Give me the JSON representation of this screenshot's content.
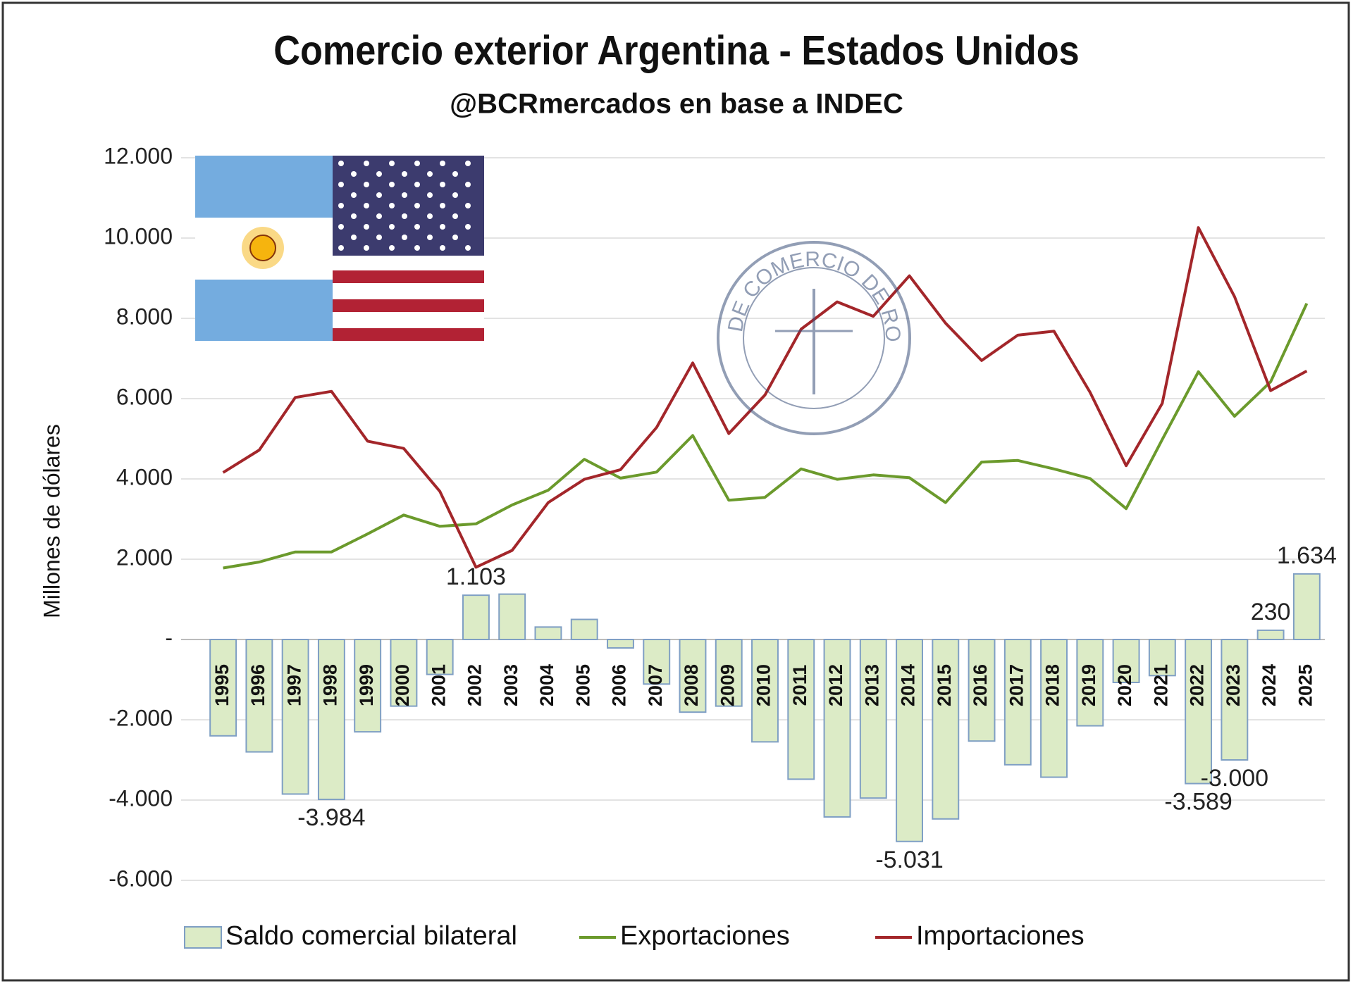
{
  "chart_data": {
    "type": "combo",
    "title": "Comercio exterior Argentina - Estados Unidos",
    "subtitle": "@BCRmercados en base a INDEC",
    "y_label": "Millones de dólares",
    "logo_text": "BOLSA DE COMERCIO DE ROSARIO",
    "categories": [
      "1995",
      "1996",
      "1997",
      "1998",
      "1999",
      "2000",
      "2001",
      "2002",
      "2003",
      "2004",
      "2005",
      "2006",
      "2007",
      "2008",
      "2009",
      "2010",
      "2011",
      "2012",
      "2013",
      "2014",
      "2015",
      "2016",
      "2017",
      "2018",
      "2019",
      "2020",
      "2021",
      "2022",
      "2023",
      "2024",
      "2025"
    ],
    "series": [
      {
        "name": "Saldo comercial bilateral",
        "type": "bar",
        "color": "#dcebc6",
        "stroke": "#7f9fc4",
        "values": [
          -2400,
          -2800,
          -3850,
          -3984,
          -2300,
          -1660,
          -870,
          1103,
          1130,
          310,
          500,
          -210,
          -1110,
          -1810,
          -1660,
          -2550,
          -3480,
          -4420,
          -3950,
          -5031,
          -4470,
          -2530,
          -3120,
          -3430,
          -2150,
          -1070,
          -900,
          -3589,
          -3000,
          230,
          1634
        ],
        "value_labels": [
          null,
          null,
          null,
          "-3.984",
          null,
          null,
          null,
          "1.103",
          null,
          null,
          null,
          null,
          null,
          null,
          null,
          null,
          null,
          null,
          null,
          "-5.031",
          null,
          null,
          null,
          null,
          null,
          null,
          null,
          "-3.589",
          "-3.000",
          "230",
          "1.634"
        ]
      },
      {
        "name": "Exportaciones",
        "type": "line",
        "color": "#6b9a2c",
        "values": [
          1780,
          1930,
          2180,
          2180,
          2630,
          3100,
          2820,
          2880,
          3350,
          3720,
          4490,
          4020,
          4170,
          5080,
          3470,
          3540,
          4250,
          3990,
          4100,
          4030,
          3410,
          4420,
          4460,
          4250,
          4010,
          3260,
          4980,
          6670,
          5560,
          6420,
          8370
        ]
      },
      {
        "name": "Importaciones",
        "type": "line",
        "color": "#a3262a",
        "values": [
          4160,
          4720,
          6030,
          6180,
          4940,
          4760,
          3690,
          1800,
          2220,
          3410,
          3990,
          4230,
          5280,
          6890,
          5130,
          6090,
          7730,
          8410,
          8050,
          9060,
          7880,
          6950,
          7580,
          7680,
          6160,
          4330,
          5880,
          10260,
          8540,
          6200,
          6690
        ]
      }
    ],
    "ylim": [
      -6000,
      12000
    ],
    "yticks": [
      {
        "value": -6000,
        "label": "-6.000"
      },
      {
        "value": -4000,
        "label": "-4.000"
      },
      {
        "value": -2000,
        "label": "-2.000"
      },
      {
        "value": 0,
        "label": "-"
      },
      {
        "value": 2000,
        "label": "2.000"
      },
      {
        "value": 4000,
        "label": "4.000"
      },
      {
        "value": 6000,
        "label": "6.000"
      },
      {
        "value": 8000,
        "label": "8.000"
      },
      {
        "value": 10000,
        "label": "10.000"
      },
      {
        "value": 12000,
        "label": "12.000"
      }
    ],
    "grid": true,
    "legend": "bottom"
  }
}
